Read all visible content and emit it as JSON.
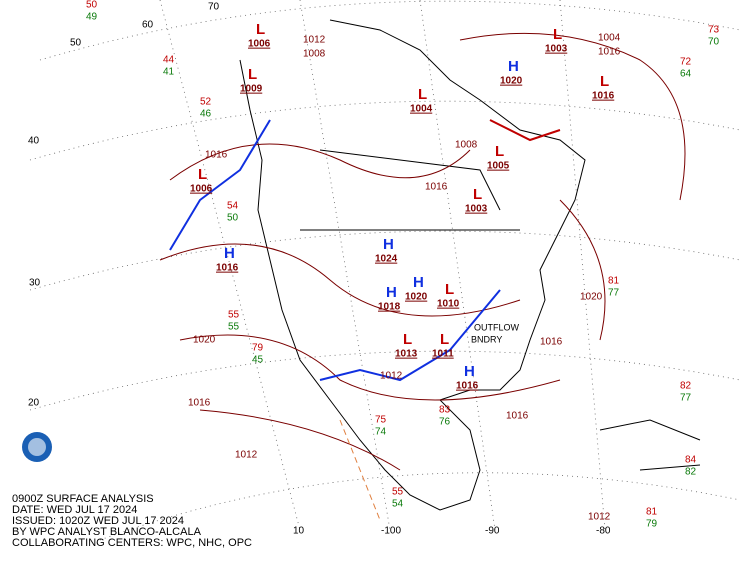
{
  "caption": [
    "0900Z SURFACE ANALYSIS",
    "DATE: WED JUL 17 2024",
    "ISSUED: 1020Z WED JUL 17 2024",
    "BY WPC ANALYST BLANCO-ALCALA",
    "COLLABORATING CENTERS: WPC, NHC, OPC"
  ],
  "latitude_labels": [
    "70",
    "60",
    "50",
    "40",
    "30",
    "20",
    "10"
  ],
  "longitude_labels": [
    "-100",
    "-90",
    "-80"
  ],
  "pressure_centers": [
    {
      "letter": "L",
      "value": "1006"
    },
    {
      "letter": "L",
      "value": "1009"
    },
    {
      "letter": "H",
      "value": "1020"
    },
    {
      "letter": "L",
      "value": "1016"
    },
    {
      "letter": "L",
      "value": "1003"
    },
    {
      "letter": "L",
      "value": "1006"
    },
    {
      "letter": "H",
      "value": "1016"
    },
    {
      "letter": "H",
      "value": "1024"
    },
    {
      "letter": "H",
      "value": "1020"
    },
    {
      "letter": "L",
      "value": "1013"
    },
    {
      "letter": "L",
      "value": "1011"
    },
    {
      "letter": "L",
      "value": "1005"
    },
    {
      "letter": "L",
      "value": "1003"
    },
    {
      "letter": "H",
      "value": "1016"
    },
    {
      "letter": "L",
      "value": "1004"
    },
    {
      "letter": "H",
      "value": "1018"
    },
    {
      "letter": "L",
      "value": "1010"
    }
  ],
  "isobar_labels": [
    "1016",
    "1020",
    "1016",
    "1012",
    "1016",
    "1016",
    "1020",
    "1016",
    "1008",
    "1012",
    "1004",
    "1008",
    "1016",
    "1012",
    "1012"
  ],
  "feature_labels": [
    "OUTFLOW",
    "BNDRY"
  ],
  "station_plots": [
    {
      "temp": "73",
      "dew": "70"
    },
    {
      "temp": "72",
      "dew": "64"
    },
    {
      "temp": "82",
      "dew": "77"
    },
    {
      "temp": "81",
      "dew": "77"
    },
    {
      "temp": "84",
      "dew": "82"
    },
    {
      "temp": "81",
      "dew": "79"
    },
    {
      "temp": "54",
      "dew": "50"
    },
    {
      "temp": "55",
      "dew": "55"
    },
    {
      "temp": "79",
      "dew": "45"
    },
    {
      "temp": "83",
      "dew": "76"
    },
    {
      "temp": "75",
      "dew": "74"
    },
    {
      "temp": "55",
      "dew": "54"
    },
    {
      "temp": "52",
      "dew": "46"
    },
    {
      "temp": "44",
      "dew": "41"
    },
    {
      "temp": "50",
      "dew": "49"
    }
  ]
}
